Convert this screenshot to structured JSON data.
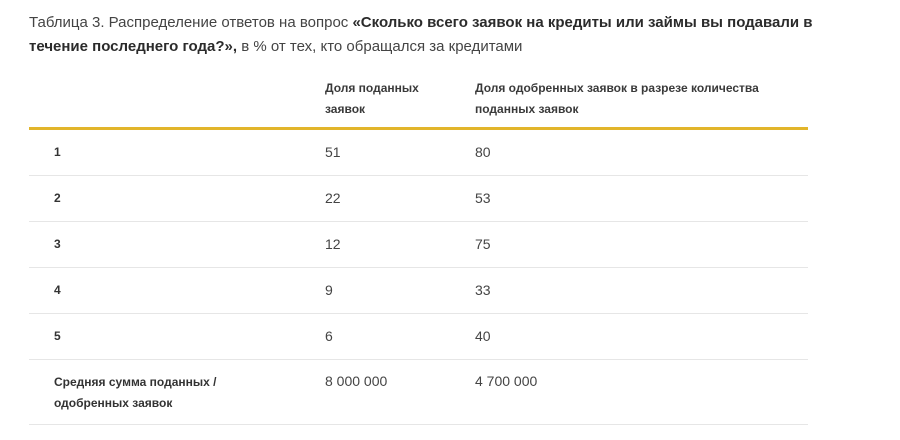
{
  "caption": {
    "prefix": "Таблица 3. Распределение ответов на вопрос ",
    "question": "«Сколько всего заявок на кредиты или займы вы подавали в течение последнего года?»,",
    "suffix": " в % от тех, кто обращался за кредитами"
  },
  "table": {
    "headers": {
      "col1": "",
      "col2": "Доля поданных заявок",
      "col3": "Доля одобренных заявок в разрезе количества поданных заявок"
    },
    "rows": [
      {
        "label": "1",
        "submitted": "51",
        "approved": "80"
      },
      {
        "label": "2",
        "submitted": "22",
        "approved": "53"
      },
      {
        "label": "3",
        "submitted": "12",
        "approved": "75"
      },
      {
        "label": "4",
        "submitted": "9",
        "approved": "33"
      },
      {
        "label": "5",
        "submitted": "6",
        "approved": "40"
      }
    ],
    "summary": {
      "label": "Средняя сумма поданных / одобренных заявок",
      "submitted": "8 000 000",
      "approved": "4 700 000"
    }
  },
  "colors": {
    "accent": "#e2b52a",
    "divider": "#e6e6e6"
  }
}
